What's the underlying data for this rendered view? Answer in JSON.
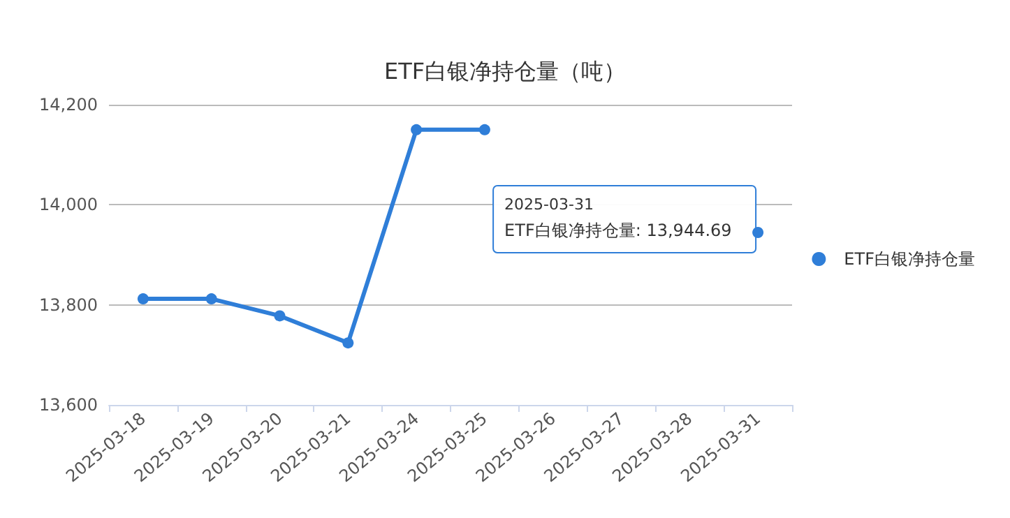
{
  "chart_data": {
    "type": "line",
    "title": "ETF白银净持仓量（吨）",
    "categories": [
      "2025-03-18",
      "2025-03-19",
      "2025-03-20",
      "2025-03-21",
      "2025-03-24",
      "2025-03-25",
      "2025-03-26",
      "2025-03-27",
      "2025-03-28",
      "2025-03-31"
    ],
    "series": [
      {
        "name": "ETF白银净持仓量",
        "color": "#2f7ed8",
        "values": [
          13812,
          13812,
          13778,
          13724,
          14150,
          14150,
          null,
          null,
          null,
          13944.69
        ]
      }
    ],
    "ylim": [
      13600,
      14200
    ],
    "yticks": [
      {
        "value": 13600,
        "label": "13,600"
      },
      {
        "value": 13800,
        "label": "13,800"
      },
      {
        "value": 14000,
        "label": "14,000"
      },
      {
        "value": 14200,
        "label": "14,200"
      }
    ],
    "grid": "y",
    "legend": "right",
    "marker": "circle",
    "line_style": "solid",
    "annotations": [
      {
        "text": "2025-03-31\nETF白银净持仓量: 13,944.69",
        "x": "2025-03-31",
        "y": 13944.69
      }
    ]
  }
}
